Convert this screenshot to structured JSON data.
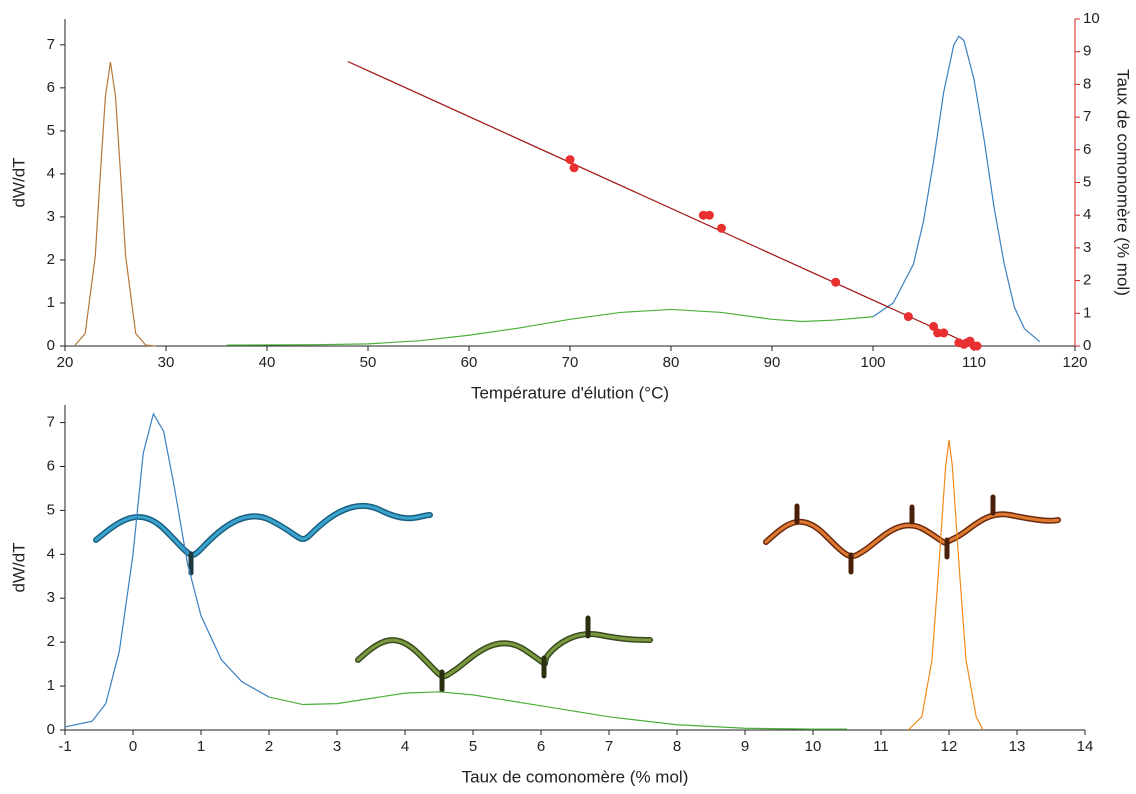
{
  "chart_data": [
    {
      "type": "line",
      "xlabel": "Température d'élution (°C)",
      "ylabel": "dW/dT",
      "y2label": "Taux de comonomère (% mol)",
      "xlim": [
        20,
        120
      ],
      "xticks": [
        20,
        30,
        40,
        50,
        60,
        70,
        80,
        90,
        100,
        110,
        120
      ],
      "ylim": [
        0,
        7.6
      ],
      "yticks": [
        0,
        1,
        2,
        3,
        4,
        5,
        6,
        7
      ],
      "y2lim": [
        0,
        10
      ],
      "y2ticks": [
        0,
        1,
        2,
        3,
        4,
        5,
        6,
        7,
        8,
        9,
        10
      ],
      "y2color": "#d62020",
      "series": [
        {
          "type": "line",
          "color": "#b5773a",
          "x": [
            21,
            22,
            23,
            23.5,
            24,
            24.5,
            25,
            25.5,
            26,
            27,
            28,
            29
          ],
          "values": [
            0.02,
            0.29,
            2.1,
            4.0,
            5.8,
            6.6,
            5.8,
            4.0,
            2.1,
            0.29,
            0.02,
            0
          ]
        },
        {
          "type": "line",
          "color": "#4caf3a",
          "x": [
            36,
            45,
            50,
            55,
            60,
            65,
            70,
            75,
            80,
            85,
            90,
            93,
            96,
            100
          ],
          "values": [
            0.02,
            0.03,
            0.05,
            0.12,
            0.25,
            0.42,
            0.62,
            0.78,
            0.85,
            0.78,
            0.62,
            0.57,
            0.6,
            0.68
          ]
        },
        {
          "type": "line",
          "color": "#3a7fbf",
          "x": [
            100,
            102,
            104,
            105,
            106,
            107,
            108,
            108.5,
            109,
            110,
            111,
            112,
            113,
            114,
            115,
            116.5
          ],
          "values": [
            0.68,
            1.0,
            1.9,
            2.9,
            4.3,
            5.9,
            7.0,
            7.2,
            7.1,
            6.2,
            4.8,
            3.2,
            1.9,
            0.9,
            0.4,
            0.1
          ]
        },
        {
          "type": "line",
          "axis": "y2",
          "color": "#a01010",
          "x": [
            48,
            110
          ],
          "values": [
            8.7,
            0
          ]
        },
        {
          "type": "scatter",
          "axis": "y2",
          "color": "#e83030",
          "x": [
            70,
            70.4,
            83.2,
            83.8,
            85,
            96.3,
            103.5,
            106,
            106.4,
            107,
            108.5,
            109,
            109.3,
            109.6,
            110,
            110.3
          ],
          "values": [
            5.7,
            5.45,
            4.0,
            4.0,
            3.6,
            1.95,
            0.9,
            0.6,
            0.4,
            0.4,
            0.1,
            0.05,
            0.1,
            0.15,
            0,
            0
          ]
        }
      ]
    },
    {
      "type": "line",
      "xlabel": "Taux de comonomère (% mol)",
      "ylabel": "dW/dT",
      "xlim": [
        -1,
        14
      ],
      "xticks": [
        -1,
        0,
        1,
        2,
        3,
        4,
        5,
        6,
        7,
        8,
        9,
        10,
        11,
        12,
        13,
        14
      ],
      "ylim": [
        0,
        7.4
      ],
      "yticks": [
        0,
        1,
        2,
        3,
        4,
        5,
        6,
        7
      ],
      "series": [
        {
          "type": "line",
          "color": "#3a7fbf",
          "x": [
            -1,
            -0.6,
            -0.4,
            -0.2,
            0,
            0.15,
            0.3,
            0.45,
            0.6,
            0.8,
            1,
            1.3,
            1.6,
            2
          ],
          "values": [
            0.07,
            0.2,
            0.6,
            1.8,
            4.0,
            6.3,
            7.2,
            6.8,
            5.6,
            3.8,
            2.6,
            1.6,
            1.1,
            0.75
          ]
        },
        {
          "type": "line",
          "color": "#4caf3a",
          "x": [
            2,
            2.5,
            3,
            3.5,
            4,
            4.5,
            5,
            6,
            7,
            8,
            9,
            10,
            10.5
          ],
          "values": [
            0.75,
            0.58,
            0.6,
            0.72,
            0.84,
            0.87,
            0.8,
            0.55,
            0.3,
            0.12,
            0.04,
            0.02,
            0.02
          ]
        },
        {
          "type": "line",
          "color": "#f08a1c",
          "x": [
            11.4,
            11.6,
            11.75,
            11.85,
            11.95,
            12,
            12.05,
            12.15,
            12.25,
            12.4,
            12.5
          ],
          "values": [
            0,
            0.3,
            1.6,
            3.7,
            6.0,
            6.6,
            6.0,
            3.7,
            1.6,
            0.3,
            0
          ]
        }
      ]
    }
  ]
}
